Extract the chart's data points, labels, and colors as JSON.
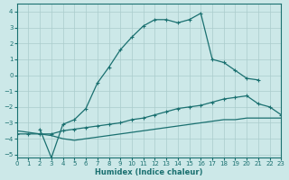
{
  "xlabel": "Humidex (Indice chaleur)",
  "bg_color": "#cce8e8",
  "grid_color": "#aacccc",
  "line_color": "#1a7070",
  "xlim": [
    0,
    23
  ],
  "ylim": [
    -5.2,
    4.5
  ],
  "xticks": [
    0,
    1,
    2,
    3,
    4,
    5,
    6,
    7,
    8,
    9,
    10,
    11,
    12,
    13,
    14,
    15,
    16,
    17,
    18,
    19,
    20,
    21,
    22,
    23
  ],
  "yticks": [
    -5,
    -4,
    -3,
    -2,
    -1,
    0,
    1,
    2,
    3,
    4
  ],
  "line1_x": [
    0,
    1,
    2,
    3,
    4,
    5,
    6,
    7,
    8,
    9,
    10,
    11,
    12,
    13,
    14,
    15,
    16,
    17,
    18,
    19,
    20,
    21,
    22,
    23
  ],
  "line1_y": [
    -3.5,
    -3.6,
    -3.7,
    -3.8,
    -4.0,
    -4.1,
    -4.0,
    -3.9,
    -3.8,
    -3.7,
    -3.6,
    -3.5,
    -3.4,
    -3.3,
    -3.2,
    -3.1,
    -3.0,
    -2.9,
    -2.8,
    -2.8,
    -2.7,
    -2.7,
    -2.7,
    -2.7
  ],
  "line2_x": [
    0,
    1,
    2,
    3,
    4,
    5,
    6,
    7,
    8,
    9,
    10,
    11,
    12,
    13,
    14,
    15,
    16,
    17,
    18,
    19,
    20,
    21,
    22,
    23
  ],
  "line2_y": [
    -3.7,
    -3.7,
    -3.7,
    -3.7,
    -3.5,
    -3.4,
    -3.3,
    -3.2,
    -3.1,
    -3.0,
    -2.8,
    -2.7,
    -2.5,
    -2.3,
    -2.1,
    -2.0,
    -1.9,
    -1.7,
    -1.5,
    -1.4,
    -1.3,
    -1.8,
    -2.0,
    -2.5
  ],
  "line3_x": [
    2,
    3,
    4,
    5,
    6,
    7,
    8,
    9,
    10,
    11,
    12,
    13,
    14,
    15,
    16,
    17,
    18,
    19,
    20,
    21
  ],
  "line3_y": [
    -3.4,
    -5.2,
    -3.1,
    -2.8,
    -2.1,
    -0.5,
    0.5,
    1.6,
    2.4,
    3.1,
    3.5,
    3.5,
    3.3,
    3.5,
    3.9,
    1.0,
    0.8,
    0.3,
    -0.2,
    -0.3
  ]
}
